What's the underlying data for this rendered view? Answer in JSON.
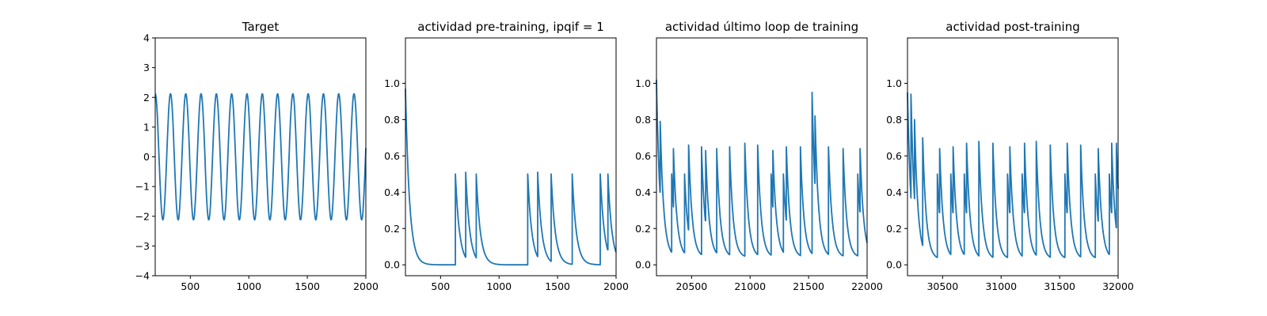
{
  "figure": {
    "background": "#ffffff",
    "line_color": "#1f77b4"
  },
  "chart_data": [
    {
      "type": "line",
      "title": "Target",
      "xlabel": "",
      "ylabel": "",
      "xlim": [
        200,
        2000
      ],
      "ylim": [
        -4,
        4
      ],
      "xticks": [
        500,
        1000,
        1500,
        2000
      ],
      "yticks": [
        -4,
        -3,
        -2,
        -1,
        0,
        1,
        2,
        3,
        4
      ],
      "grid": false,
      "signal": {
        "kind": "sine",
        "amplitude": 2.12,
        "period": 130.7,
        "peak_at": 200
      }
    },
    {
      "type": "line",
      "title": "actividad pre-training, ipqif = 1",
      "xlabel": "",
      "ylabel": "",
      "xlim": [
        200,
        2000
      ],
      "ylim": [
        -0.06,
        1.25
      ],
      "xticks": [
        500,
        1000,
        1500,
        2000
      ],
      "yticks": [
        0.0,
        0.2,
        0.4,
        0.6,
        0.8,
        1.0
      ],
      "grid": false,
      "signal": {
        "kind": "spikes",
        "decay": 35,
        "baseline": 0,
        "events": [
          {
            "x": 200,
            "y": 0.97
          },
          {
            "x": 627,
            "y": 0.5
          },
          {
            "x": 715,
            "y": 0.51
          },
          {
            "x": 805,
            "y": 0.5
          },
          {
            "x": 1245,
            "y": 0.5
          },
          {
            "x": 1330,
            "y": 0.51
          },
          {
            "x": 1445,
            "y": 0.5
          },
          {
            "x": 1625,
            "y": 0.5
          },
          {
            "x": 1865,
            "y": 0.5
          },
          {
            "x": 1930,
            "y": 0.5
          }
        ]
      }
    },
    {
      "type": "line",
      "title": "actividad último loop de training",
      "xlabel": "",
      "ylabel": "",
      "xlim": [
        20200,
        22000
      ],
      "ylim": [
        -0.06,
        1.25
      ],
      "xticks": [
        20500,
        21000,
        21500,
        22000
      ],
      "yticks": [
        0.0,
        0.2,
        0.4,
        0.6,
        0.8,
        1.0
      ],
      "grid": false,
      "signal": {
        "kind": "spikes",
        "decay": 30,
        "baseline": 0.04,
        "events": [
          {
            "x": 20200,
            "y": 1.02
          },
          {
            "x": 20232,
            "y": 0.79
          },
          {
            "x": 20330,
            "y": 0.5
          },
          {
            "x": 20345,
            "y": 0.64
          },
          {
            "x": 20440,
            "y": 0.5
          },
          {
            "x": 20475,
            "y": 0.66
          },
          {
            "x": 20585,
            "y": 0.65
          },
          {
            "x": 20620,
            "y": 0.63
          },
          {
            "x": 20715,
            "y": 0.64
          },
          {
            "x": 20825,
            "y": 0.65
          },
          {
            "x": 20955,
            "y": 0.67
          },
          {
            "x": 21065,
            "y": 0.66
          },
          {
            "x": 21180,
            "y": 0.5
          },
          {
            "x": 21195,
            "y": 0.63
          },
          {
            "x": 21285,
            "y": 0.5
          },
          {
            "x": 21310,
            "y": 0.65
          },
          {
            "x": 21430,
            "y": 0.65
          },
          {
            "x": 21530,
            "y": 0.95
          },
          {
            "x": 21555,
            "y": 0.82
          },
          {
            "x": 21670,
            "y": 0.65
          },
          {
            "x": 21795,
            "y": 0.64
          },
          {
            "x": 21920,
            "y": 0.5
          },
          {
            "x": 21940,
            "y": 0.64
          }
        ]
      }
    },
    {
      "type": "line",
      "title": "actividad post-training",
      "xlabel": "",
      "ylabel": "",
      "xlim": [
        30200,
        32000
      ],
      "ylim": [
        -0.06,
        1.25
      ],
      "xticks": [
        30500,
        31000,
        31500,
        32000
      ],
      "yticks": [
        0.0,
        0.2,
        0.4,
        0.6,
        0.8,
        1.0
      ],
      "grid": false,
      "signal": {
        "kind": "spikes",
        "decay": 30,
        "baseline": 0.03,
        "events": [
          {
            "x": 30200,
            "y": 0.95
          },
          {
            "x": 30230,
            "y": 0.94
          },
          {
            "x": 30260,
            "y": 0.8
          },
          {
            "x": 30330,
            "y": 0.7
          },
          {
            "x": 30455,
            "y": 0.5
          },
          {
            "x": 30475,
            "y": 0.64
          },
          {
            "x": 30570,
            "y": 0.5
          },
          {
            "x": 30590,
            "y": 0.65
          },
          {
            "x": 30685,
            "y": 0.5
          },
          {
            "x": 30705,
            "y": 0.67
          },
          {
            "x": 30810,
            "y": 0.68
          },
          {
            "x": 30930,
            "y": 0.67
          },
          {
            "x": 31055,
            "y": 0.5
          },
          {
            "x": 31075,
            "y": 0.65
          },
          {
            "x": 31180,
            "y": 0.5
          },
          {
            "x": 31200,
            "y": 0.67
          },
          {
            "x": 31300,
            "y": 0.68
          },
          {
            "x": 31420,
            "y": 0.66
          },
          {
            "x": 31545,
            "y": 0.5
          },
          {
            "x": 31565,
            "y": 0.67
          },
          {
            "x": 31680,
            "y": 0.66
          },
          {
            "x": 31805,
            "y": 0.5
          },
          {
            "x": 31830,
            "y": 0.64
          },
          {
            "x": 31925,
            "y": 0.5
          },
          {
            "x": 31945,
            "y": 0.67
          },
          {
            "x": 31985,
            "y": 0.67
          }
        ]
      }
    }
  ]
}
